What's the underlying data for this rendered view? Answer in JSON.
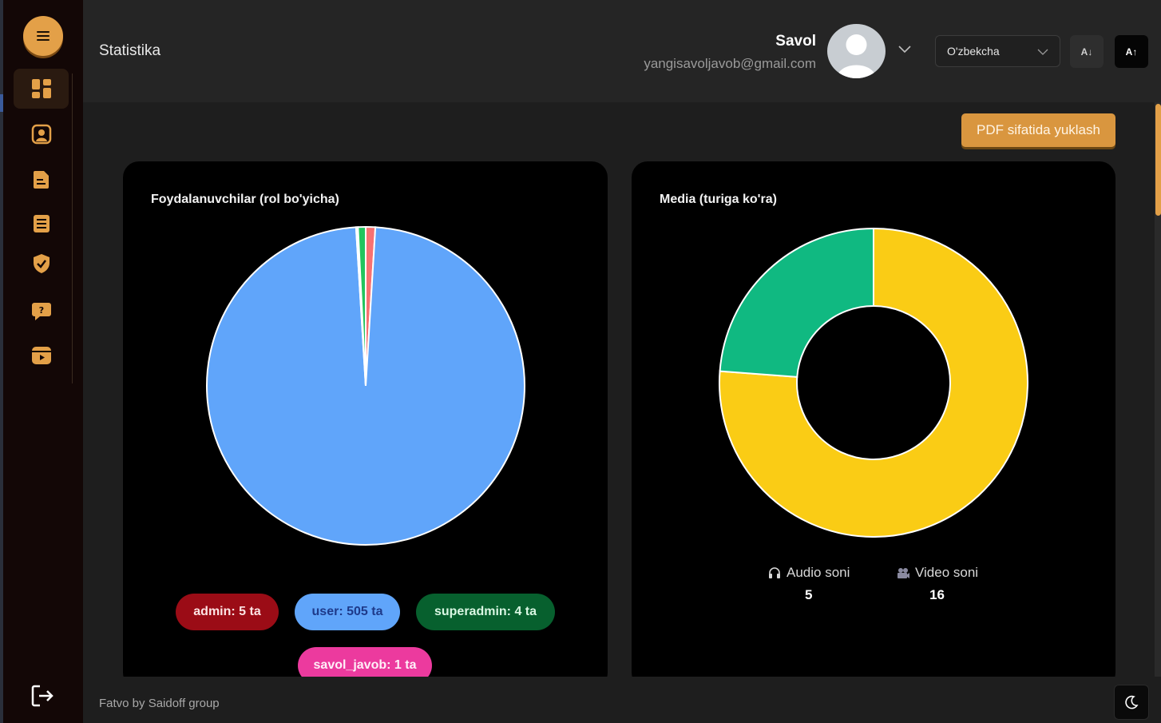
{
  "header": {
    "page_title": "Statistika",
    "user_name": "Savol",
    "user_email": "yangisavoljavob@gmail.com",
    "language": "O'zbekcha",
    "sort_asc_label": "A↓",
    "sort_desc_label": "A↑"
  },
  "sidebar": {
    "items": [
      {
        "icon": "dashboard-icon",
        "active": true
      },
      {
        "icon": "user-profile-icon",
        "active": false
      },
      {
        "icon": "document-icon",
        "active": false
      },
      {
        "icon": "book-icon",
        "active": false
      },
      {
        "icon": "shield-check-icon",
        "active": false
      },
      {
        "icon": "question-chat-icon",
        "active": false
      },
      {
        "icon": "video-play-icon",
        "active": false
      }
    ]
  },
  "actions": {
    "pdf_label": "PDF sifatida yuklash"
  },
  "colors": {
    "accent": "#e3a048",
    "user": "#60a5fa",
    "superadmin": "#22c55e",
    "admin": "#f87171",
    "audio": "#10b981",
    "video": "#facc15"
  },
  "users_card": {
    "title": "Foydalanuvchilar (rol bo'yicha)",
    "legend": [
      {
        "label": "admin: 5 ta"
      },
      {
        "label": "user: 505 ta"
      },
      {
        "label": "superadmin: 4 ta"
      },
      {
        "label": "savol_javob: 1 ta"
      }
    ]
  },
  "media_card": {
    "title": "Media (turiga ko'ra)",
    "audio_label": "Audio soni",
    "audio_value": "5",
    "video_label": "Video soni",
    "video_value": "16"
  },
  "chart_data": [
    {
      "type": "pie",
      "title": "Foydalanuvchilar (rol bo'yicha)",
      "categories": [
        "admin",
        "user",
        "superadmin",
        "savol_javob"
      ],
      "values": [
        5,
        505,
        4,
        1
      ]
    },
    {
      "type": "pie",
      "title": "Media (turiga ko'ra)",
      "categories": [
        "Audio soni",
        "Video soni"
      ],
      "values": [
        5,
        16
      ]
    }
  ],
  "footer": {
    "text": "Fatvo by Saidoff group"
  }
}
